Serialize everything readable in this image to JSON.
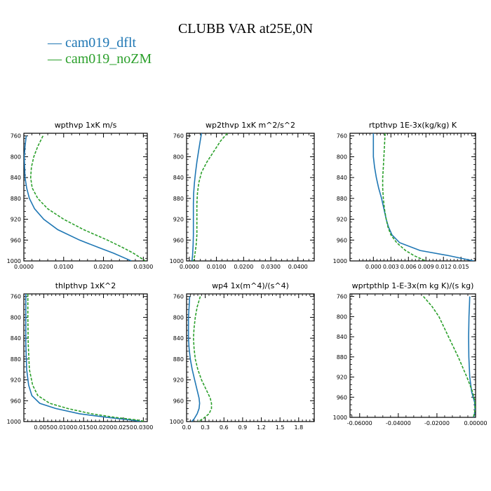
{
  "page": {
    "title": "CLUBB VAR at25E,0N"
  },
  "legend": [
    {
      "label": "— cam019_dflt",
      "color": "#1f77b4"
    },
    {
      "label": "— cam019_noZM",
      "color": "#2ca02c"
    }
  ],
  "chart_data": [
    {
      "type": "line",
      "title": "wpthvp  1xK m/s",
      "xlim": [
        0,
        0.031
      ],
      "ylim": [
        755,
        1000
      ],
      "y_inverted": true,
      "yticks": [
        760,
        800,
        840,
        880,
        920,
        960,
        1000
      ],
      "xticks": [
        0,
        0.01,
        0.02,
        0.03
      ],
      "xtick_labels": [
        "0.0000",
        "0.0100",
        "0.0200",
        "0.0300"
      ],
      "y": [
        760,
        780,
        800,
        820,
        840,
        860,
        880,
        900,
        920,
        940,
        960,
        975,
        985,
        995,
        1000
      ],
      "series": [
        {
          "name": "cam019_dflt",
          "color": "#1f77b4",
          "dash": "",
          "values": [
            0.0006,
            0.0003,
            0.0001,
            0.0002,
            0.0003,
            0.0007,
            0.0014,
            0.0027,
            0.005,
            0.0085,
            0.014,
            0.019,
            0.0225,
            0.0255,
            0.027
          ]
        },
        {
          "name": "cam019_noZM",
          "color": "#2ca02c",
          "dash": "4,2",
          "values": [
            0.0048,
            0.0035,
            0.0025,
            0.0019,
            0.0017,
            0.0021,
            0.0035,
            0.006,
            0.01,
            0.015,
            0.021,
            0.025,
            0.0275,
            0.0295,
            0.0305
          ]
        }
      ]
    },
    {
      "type": "line",
      "title": "wp2thvp  1xK m^2/s^2",
      "xlim": [
        -0.001,
        0.046
      ],
      "ylim": [
        755,
        1000
      ],
      "y_inverted": true,
      "yticks": [
        760,
        800,
        840,
        880,
        920,
        960,
        1000
      ],
      "xticks": [
        0,
        0.01,
        0.02,
        0.03,
        0.04
      ],
      "xtick_labels": [
        "0.0000",
        "0.0100",
        "0.0200",
        "0.0300",
        "0.0400"
      ],
      "y": [
        755,
        770,
        790,
        810,
        830,
        850,
        870,
        890,
        920,
        950,
        970,
        990,
        1000
      ],
      "series": [
        {
          "name": "cam019_dflt",
          "color": "#1f77b4",
          "dash": "",
          "values": [
            0.0045,
            0.004,
            0.0034,
            0.0028,
            0.0023,
            0.0019,
            0.0016,
            0.0015,
            0.0015,
            0.0015,
            0.0014,
            0.0012,
            0.001
          ]
        },
        {
          "name": "cam019_noZM",
          "color": "#2ca02c",
          "dash": "4,2",
          "values": [
            0.014,
            0.0115,
            0.009,
            0.0065,
            0.0045,
            0.0035,
            0.003,
            0.0028,
            0.0028,
            0.0028,
            0.0025,
            0.002,
            0.0015
          ]
        }
      ]
    },
    {
      "type": "line",
      "title": "rtpthvp  1E-3x(kg/kg) K",
      "xlim": [
        -0.004,
        0.0175
      ],
      "ylim": [
        755,
        1000
      ],
      "y_inverted": true,
      "yticks": [
        760,
        800,
        840,
        880,
        920,
        960,
        1000
      ],
      "xticks": [
        0,
        0.003,
        0.006,
        0.009,
        0.012,
        0.015
      ],
      "xtick_labels": [
        "0.000",
        "0.003",
        "0.006",
        "0.009",
        "0.012",
        "0.015"
      ],
      "y": [
        755,
        780,
        800,
        820,
        840,
        860,
        880,
        900,
        920,
        935,
        950,
        965,
        980,
        990,
        1000
      ],
      "series": [
        {
          "name": "cam019_dflt",
          "color": "#1f77b4",
          "dash": "",
          "values": [
            0.0,
            0.0,
            0.0,
            0.0002,
            0.0005,
            0.0009,
            0.0014,
            0.0018,
            0.0022,
            0.0026,
            0.0032,
            0.0045,
            0.008,
            0.013,
            0.0172
          ]
        },
        {
          "name": "cam019_noZM",
          "color": "#2ca02c",
          "dash": "4,2",
          "values": [
            0.002,
            0.0019,
            0.0018,
            0.0017,
            0.0016,
            0.0016,
            0.0017,
            0.0019,
            0.0022,
            0.0025,
            0.003,
            0.004,
            0.0055,
            0.007,
            0.009
          ]
        }
      ]
    },
    {
      "type": "line",
      "title": "thlpthvp  1xK^2",
      "xlim": [
        0,
        0.031
      ],
      "ylim": [
        755,
        1000
      ],
      "y_inverted": true,
      "yticks": [
        760,
        800,
        840,
        880,
        920,
        960,
        1000
      ],
      "xticks": [
        0.005,
        0.01,
        0.015,
        0.02,
        0.025,
        0.03
      ],
      "xtick_labels": [
        "0.0050",
        "0.0100",
        "0.0150",
        "0.0200",
        "0.0250",
        "0.0300"
      ],
      "y": [
        755,
        800,
        850,
        900,
        930,
        950,
        965,
        975,
        985,
        992,
        997,
        1000
      ],
      "series": [
        {
          "name": "cam019_dflt",
          "color": "#1f77b4",
          "dash": "",
          "values": [
            0.0005,
            0.0005,
            0.0005,
            0.0007,
            0.0012,
            0.002,
            0.004,
            0.008,
            0.014,
            0.021,
            0.027,
            0.0295
          ]
        },
        {
          "name": "cam019_noZM",
          "color": "#2ca02c",
          "dash": "4,2",
          "values": [
            0.001,
            0.001,
            0.0011,
            0.0014,
            0.0022,
            0.0035,
            0.0065,
            0.011,
            0.017,
            0.023,
            0.0285,
            0.0305
          ]
        }
      ]
    },
    {
      "type": "line",
      "title": "wp4  1x(m^4)/(s^4)",
      "xlim": [
        0,
        2.05
      ],
      "ylim": [
        755,
        1000
      ],
      "y_inverted": true,
      "yticks": [
        760,
        800,
        840,
        880,
        920,
        960,
        1000
      ],
      "xticks": [
        0,
        0.3,
        0.6,
        0.9,
        1.2,
        1.5,
        1.8
      ],
      "xtick_labels": [
        "0.0",
        "0.3",
        "0.6",
        "0.9",
        "1.2",
        "1.5",
        "1.8"
      ],
      "y": [
        760,
        780,
        800,
        820,
        840,
        860,
        880,
        900,
        920,
        940,
        955,
        965,
        975,
        985,
        995,
        1000
      ],
      "series": [
        {
          "name": "cam019_dflt",
          "color": "#1f77b4",
          "dash": "",
          "values": [
            0.05,
            0.04,
            0.03,
            0.03,
            0.03,
            0.04,
            0.06,
            0.09,
            0.13,
            0.17,
            0.2,
            0.21,
            0.2,
            0.17,
            0.12,
            0.08
          ]
        },
        {
          "name": "cam019_noZM",
          "color": "#2ca02c",
          "dash": "4,2",
          "values": [
            0.22,
            0.17,
            0.14,
            0.12,
            0.11,
            0.12,
            0.14,
            0.18,
            0.24,
            0.32,
            0.38,
            0.4,
            0.4,
            0.36,
            0.26,
            0.18
          ]
        }
      ]
    },
    {
      "type": "line",
      "title": "wprtpthlp  1-E-3x(m kg K)/(s kg)",
      "xlim": [
        -0.065,
        0.0
      ],
      "ylim": [
        755,
        1000
      ],
      "y_inverted": true,
      "yticks": [
        760,
        800,
        840,
        880,
        920,
        960,
        1000
      ],
      "xticks": [
        -0.06,
        -0.04,
        -0.02,
        0.0
      ],
      "xtick_labels": [
        "-0.06000",
        "-0.04000",
        "-0.02000",
        "0.00000"
      ],
      "y": [
        760,
        780,
        800,
        840,
        880,
        920,
        950,
        970,
        985,
        995,
        1000
      ],
      "series": [
        {
          "name": "cam019_dflt",
          "color": "#1f77b4",
          "dash": "",
          "values": [
            -0.003,
            -0.0032,
            -0.0034,
            -0.0036,
            -0.0035,
            -0.003,
            -0.002,
            -0.0005,
            -0.0003,
            -0.0006,
            -0.001
          ]
        },
        {
          "name": "cam019_noZM",
          "color": "#2ca02c",
          "dash": "4,2",
          "values": [
            -0.027,
            -0.0225,
            -0.019,
            -0.014,
            -0.009,
            -0.0045,
            -0.0015,
            -0.0003,
            -0.0003,
            -0.0008,
            -0.0012
          ]
        }
      ]
    }
  ]
}
